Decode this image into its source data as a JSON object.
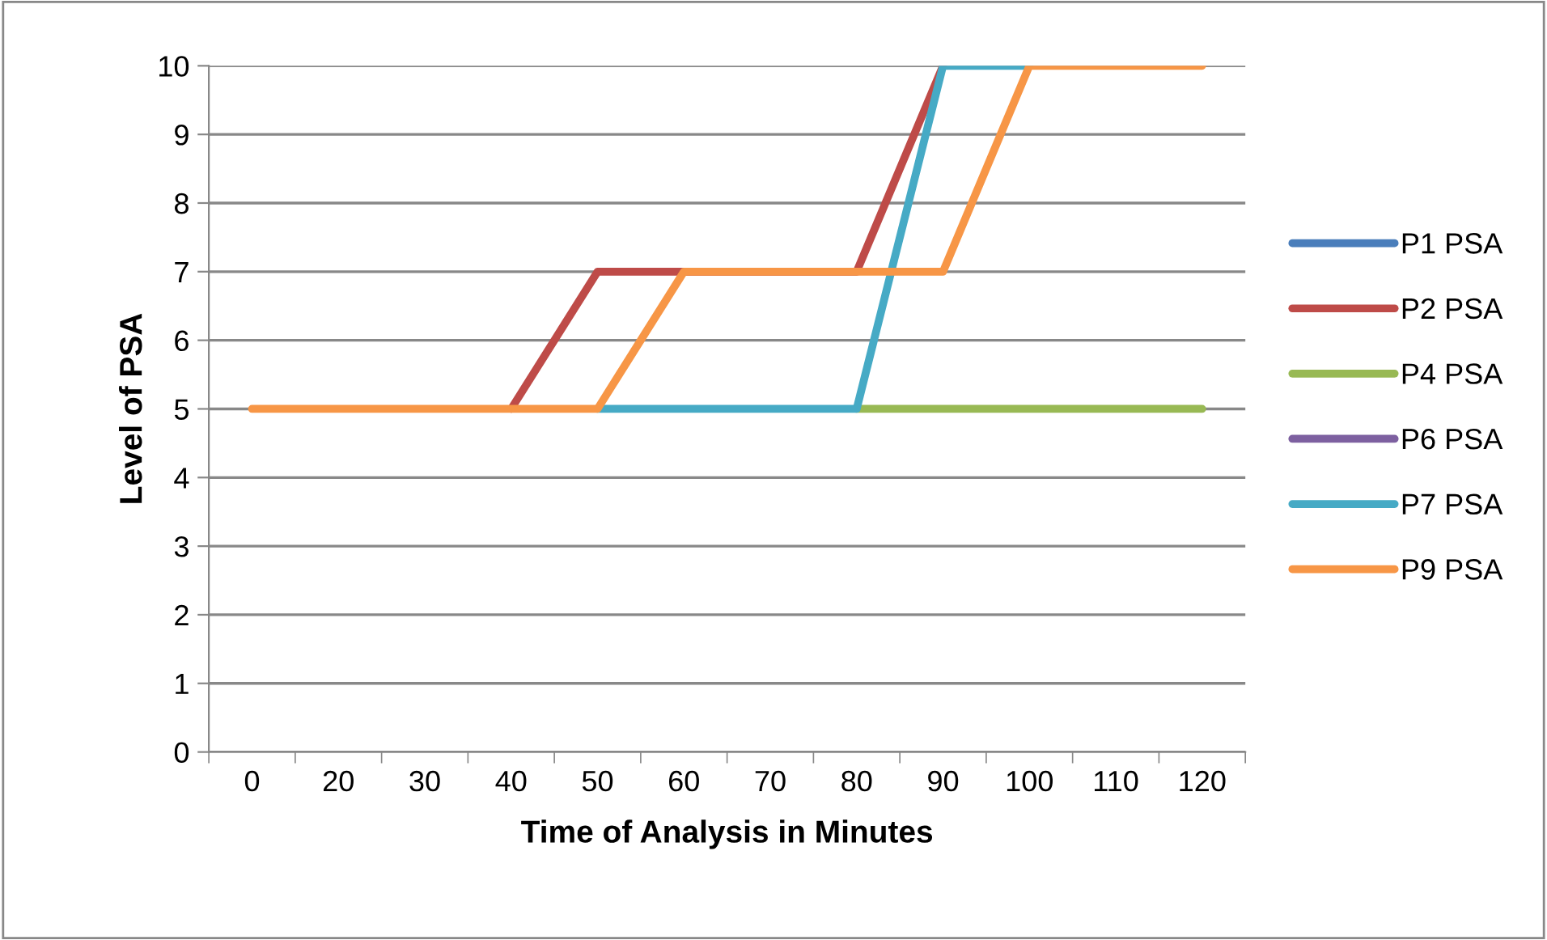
{
  "chart_data": {
    "type": "line",
    "xlabel": "Time of Analysis in Minutes",
    "ylabel": "Level of PSA",
    "categories": [
      "0",
      "20",
      "30",
      "40",
      "50",
      "60",
      "70",
      "80",
      "90",
      "100",
      "110",
      "120"
    ],
    "series": [
      {
        "name": "P1 PSA",
        "color": "#4a7ebb",
        "values": [
          null,
          null,
          null,
          null,
          null,
          null,
          null,
          null,
          null,
          null,
          null,
          null
        ]
      },
      {
        "name": "P2 PSA",
        "color": "#be4b48",
        "values": [
          null,
          null,
          null,
          5,
          7,
          7,
          7,
          7,
          10,
          null,
          null,
          null
        ]
      },
      {
        "name": "P4 PSA",
        "color": "#98b954",
        "values": [
          null,
          null,
          null,
          null,
          null,
          null,
          null,
          5,
          5,
          5,
          5,
          5
        ]
      },
      {
        "name": "P6 PSA",
        "color": "#7d60a0",
        "values": [
          null,
          null,
          null,
          null,
          null,
          null,
          null,
          null,
          null,
          null,
          null,
          null
        ]
      },
      {
        "name": "P7 PSA",
        "color": "#46aac5",
        "values": [
          null,
          null,
          null,
          null,
          5,
          5,
          5,
          5,
          10,
          10,
          null,
          null
        ]
      },
      {
        "name": "P9 PSA",
        "color": "#f79646",
        "values": [
          5,
          5,
          5,
          5,
          5,
          7,
          7,
          7,
          7,
          10,
          10,
          10
        ]
      }
    ],
    "ylim": [
      0,
      10
    ],
    "yticks": [
      0,
      1,
      2,
      3,
      4,
      5,
      6,
      7,
      8,
      9,
      10
    ],
    "grid": "y",
    "legend": "right",
    "line_style": "solid"
  }
}
